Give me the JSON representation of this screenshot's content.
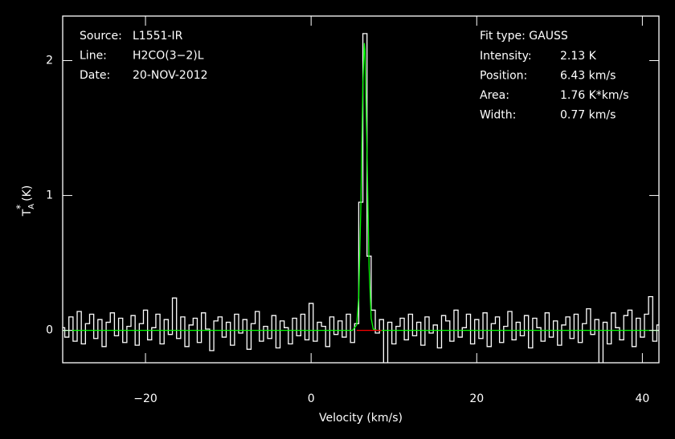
{
  "chart_data": {
    "type": "spectrum",
    "xlabel": "Velocity (km/s)",
    "ylabel": {
      "main": "T",
      "sub": "A",
      "sup": "*",
      "unit": "(K)"
    },
    "xlim": [
      -30,
      42
    ],
    "ylim": [
      -0.24,
      2.33
    ],
    "xticks": [
      {
        "value": -20,
        "label": "−20"
      },
      0,
      20,
      40
    ],
    "yticks": [
      0,
      1,
      2
    ],
    "header_left": [
      {
        "label": "Source:",
        "value": "L1551-IR"
      },
      {
        "label": "Line:",
        "value": "H2CO(3−2)L"
      },
      {
        "label": "Date:",
        "value": "20-NOV-2012"
      }
    ],
    "header_right_title": "Fit type: GAUSS",
    "header_right": [
      {
        "label": "Intensity:",
        "value": "2.13 K"
      },
      {
        "label": "Position:",
        "value": "6.43 km/s"
      },
      {
        "label": "Area:",
        "value": "1.76 K*km/s"
      },
      {
        "label": "Width:",
        "value": "0.77 km/s"
      }
    ],
    "series": [
      {
        "style": "steps",
        "color": "#ffffff",
        "x": [
          -30,
          -29.5,
          -29,
          -28.5,
          -28,
          -27.5,
          -27,
          -26.5,
          -26,
          -25.5,
          -25,
          -24.5,
          -24,
          -23.5,
          -23,
          -22.5,
          -22,
          -21.5,
          -21,
          -20.5,
          -20,
          -19.5,
          -19,
          -18.5,
          -18,
          -17.5,
          -17,
          -16.5,
          -16,
          -15.5,
          -15,
          -14.5,
          -14,
          -13.5,
          -13,
          -12.5,
          -12,
          -11.5,
          -11,
          -10.5,
          -10,
          -9.5,
          -9,
          -8.5,
          -8,
          -7.5,
          -7,
          -6.5,
          -6,
          -5.5,
          -5,
          -4.5,
          -4,
          -3.5,
          -3,
          -2.5,
          -2,
          -1.5,
          -1,
          -0.5,
          0,
          0.5,
          1,
          1.5,
          2,
          2.5,
          3,
          3.5,
          4,
          4.5,
          5,
          5.5,
          6,
          6.5,
          7,
          7.5,
          8,
          8.5,
          9,
          9.5,
          10,
          10.5,
          11,
          11.5,
          12,
          12.5,
          13,
          13.5,
          14,
          14.5,
          15,
          15.5,
          16,
          16.5,
          17,
          17.5,
          18,
          18.5,
          19,
          19.5,
          20,
          20.5,
          21,
          21.5,
          22,
          22.5,
          23,
          23.5,
          24,
          24.5,
          25,
          25.5,
          26,
          26.5,
          27,
          27.5,
          28,
          28.5,
          29,
          29.5,
          30,
          30.5,
          31,
          31.5,
          32,
          32.5,
          33,
          33.5,
          34,
          34.5,
          35,
          35.5,
          36,
          36.5,
          37,
          37.5,
          38,
          38.5,
          39,
          39.5,
          40,
          40.5,
          41,
          41.5,
          42
        ],
        "values": [
          0.02,
          -0.05,
          0.1,
          -0.08,
          0.14,
          -0.1,
          0.05,
          0.12,
          -0.06,
          0.08,
          -0.12,
          0.06,
          0.13,
          -0.04,
          0.09,
          -0.09,
          0.03,
          0.11,
          -0.11,
          0.05,
          0.15,
          -0.07,
          0.02,
          0.12,
          -0.1,
          0.08,
          -0.03,
          0.24,
          -0.06,
          0.1,
          -0.12,
          0.04,
          0.09,
          -0.09,
          0.13,
          0.01,
          -0.15,
          0.07,
          0.1,
          -0.05,
          0.06,
          -0.11,
          0.12,
          -0.02,
          0.08,
          -0.14,
          0.05,
          0.14,
          -0.08,
          0.03,
          -0.06,
          0.11,
          -0.13,
          0.07,
          0.02,
          -0.1,
          0.09,
          -0.04,
          0.12,
          -0.07,
          0.2,
          -0.08,
          0.06,
          0.03,
          -0.12,
          0.1,
          -0.03,
          0.07,
          -0.05,
          0.12,
          -0.09,
          0.05,
          0.95,
          2.2,
          0.55,
          0.15,
          -0.02,
          0.08,
          -0.26,
          0.06,
          -0.1,
          0.03,
          0.09,
          -0.07,
          0.12,
          -0.04,
          0.06,
          -0.11,
          0.1,
          -0.02,
          0.04,
          -0.13,
          0.11,
          0.07,
          -0.08,
          0.15,
          -0.05,
          0.02,
          0.12,
          -0.1,
          0.08,
          -0.06,
          0.13,
          -0.12,
          0.05,
          0.1,
          -0.09,
          0.03,
          0.14,
          -0.07,
          0.06,
          -0.04,
          0.11,
          -0.13,
          0.09,
          0.02,
          -0.08,
          0.13,
          -0.05,
          0.07,
          -0.11,
          0.04,
          0.1,
          -0.06,
          0.12,
          -0.09,
          0.05,
          0.16,
          -0.03,
          0.08,
          -0.28,
          0.06,
          -0.1,
          0.13,
          0.02,
          -0.07,
          0.11,
          0.15,
          -0.12,
          0.09,
          -0.05,
          0.12,
          0.25,
          -0.08,
          0.04
        ]
      },
      {
        "style": "line",
        "color": "#00ff00",
        "x": [
          -30,
          5,
          5.5,
          5.75,
          6,
          6.25,
          6.43,
          6.5,
          6.75,
          7,
          7.25,
          7.5,
          8,
          42
        ],
        "values": [
          0,
          0,
          0.04,
          0.25,
          0.9,
          1.83,
          2.13,
          2.08,
          1.32,
          0.47,
          0.09,
          0.01,
          0,
          0
        ]
      },
      {
        "style": "line",
        "color": "#ff0000",
        "x": [
          5.5,
          8.5
        ],
        "values": [
          0,
          0
        ]
      }
    ]
  }
}
